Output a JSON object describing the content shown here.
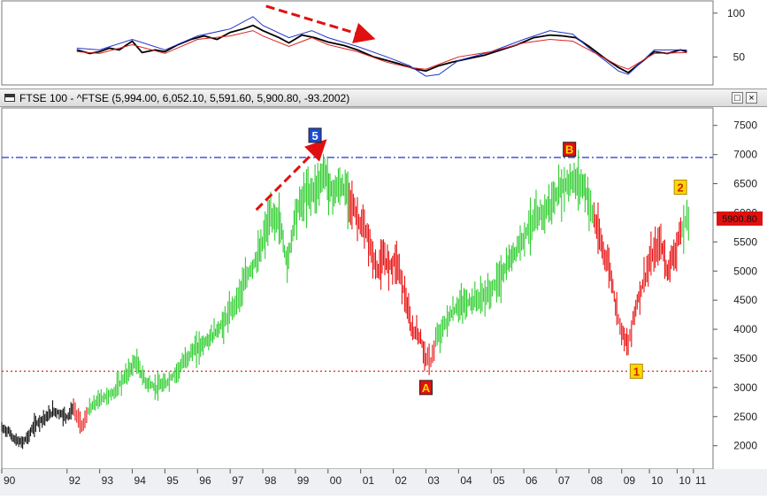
{
  "window": {
    "title": "FTSE 100 - ^FTSE (5,994.00, 6,052.10, 5,591.60, 5,900.80, -93.2002)",
    "maximize_glyph": "□",
    "close_glyph": "×"
  },
  "colors": {
    "up_wave": "#2ecc2e",
    "down_wave": "#e81010",
    "early_bars": "#111111",
    "indicator_main": "#000000",
    "indicator_blue": "#2233cc",
    "indicator_red": "#dd2222",
    "resistance_line": "#3344dd",
    "support_line": "#dd3333",
    "arrow": "#e01010",
    "label_box_yellow": "#ffd700",
    "label_box_red": "#e01010",
    "label_box_blue": "#1a4bd6",
    "price_tag_bg": "#e01010"
  },
  "chart_data": [
    {
      "type": "line",
      "panel": "indicator",
      "ylim": [
        18,
        115
      ],
      "yticks": [
        "100",
        "50"
      ],
      "ytick_values": [
        100,
        50
      ],
      "series": [
        {
          "color": "indicator_main",
          "points": [
            [
              1992.3,
              58
            ],
            [
              1992.7,
              54
            ],
            [
              1993.0,
              56
            ],
            [
              1993.3,
              60
            ],
            [
              1993.6,
              58
            ],
            [
              1994.0,
              68
            ],
            [
              1994.3,
              55
            ],
            [
              1994.7,
              58
            ],
            [
              1995.0,
              56
            ],
            [
              1995.4,
              64
            ],
            [
              1995.8,
              70
            ],
            [
              1996.2,
              74
            ],
            [
              1996.6,
              70
            ],
            [
              1997.0,
              78
            ],
            [
              1997.4,
              82
            ],
            [
              1997.7,
              86
            ],
            [
              1998.0,
              80
            ],
            [
              1998.5,
              72
            ],
            [
              1998.8,
              66
            ],
            [
              1999.2,
              75
            ],
            [
              1999.6,
              72
            ],
            [
              2000.0,
              67
            ],
            [
              2000.5,
              63
            ],
            [
              2000.9,
              58
            ],
            [
              2001.4,
              50
            ],
            [
              2001.8,
              46
            ],
            [
              2002.2,
              42
            ],
            [
              2002.7,
              36
            ],
            [
              2003.0,
              34
            ],
            [
              2003.4,
              40
            ],
            [
              2003.8,
              44
            ],
            [
              2004.3,
              48
            ],
            [
              2004.8,
              52
            ],
            [
              2005.3,
              58
            ],
            [
              2005.8,
              64
            ],
            [
              2006.3,
              72
            ],
            [
              2006.8,
              75
            ],
            [
              2007.2,
              74
            ],
            [
              2007.6,
              72
            ],
            [
              2008.0,
              62
            ],
            [
              2008.5,
              48
            ],
            [
              2008.9,
              38
            ],
            [
              2009.2,
              32
            ],
            [
              2009.6,
              44
            ],
            [
              2010.0,
              56
            ],
            [
              2010.4,
              54
            ],
            [
              2010.8,
              58
            ],
            [
              2011.0,
              56
            ]
          ]
        },
        {
          "color": "indicator_blue",
          "points": [
            [
              1992.3,
              60
            ],
            [
              1993.0,
              58
            ],
            [
              1994.0,
              70
            ],
            [
              1995.0,
              58
            ],
            [
              1996.0,
              74
            ],
            [
              1997.0,
              82
            ],
            [
              1997.7,
              96
            ],
            [
              1998.0,
              86
            ],
            [
              1998.8,
              72
            ],
            [
              1999.5,
              80
            ],
            [
              2000.0,
              72
            ],
            [
              2000.9,
              62
            ],
            [
              2001.8,
              50
            ],
            [
              2002.5,
              40
            ],
            [
              2003.0,
              28
            ],
            [
              2003.4,
              30
            ],
            [
              2004.0,
              46
            ],
            [
              2005.0,
              56
            ],
            [
              2006.0,
              70
            ],
            [
              2006.8,
              80
            ],
            [
              2007.5,
              76
            ],
            [
              2008.0,
              60
            ],
            [
              2008.9,
              34
            ],
            [
              2009.2,
              30
            ],
            [
              2010.0,
              58
            ],
            [
              2011.0,
              58
            ]
          ]
        },
        {
          "color": "indicator_red",
          "points": [
            [
              1992.3,
              56
            ],
            [
              1993.0,
              54
            ],
            [
              1994.0,
              64
            ],
            [
              1995.0,
              54
            ],
            [
              1996.0,
              70
            ],
            [
              1997.0,
              74
            ],
            [
              1997.7,
              80
            ],
            [
              1998.0,
              74
            ],
            [
              1998.8,
              62
            ],
            [
              1999.5,
              72
            ],
            [
              2000.0,
              64
            ],
            [
              2000.9,
              56
            ],
            [
              2001.8,
              44
            ],
            [
              2002.5,
              38
            ],
            [
              2003.0,
              36
            ],
            [
              2004.0,
              50
            ],
            [
              2005.0,
              56
            ],
            [
              2006.0,
              66
            ],
            [
              2006.8,
              70
            ],
            [
              2007.5,
              68
            ],
            [
              2008.0,
              58
            ],
            [
              2008.9,
              40
            ],
            [
              2009.2,
              36
            ],
            [
              2010.0,
              54
            ],
            [
              2011.0,
              55
            ]
          ]
        }
      ]
    },
    {
      "type": "line",
      "panel": "price",
      "ylim": [
        1600,
        7800
      ],
      "yticks": [
        "7500",
        "7000",
        "6500",
        "6000",
        "5500",
        "5000",
        "4500",
        "4000",
        "3500",
        "3000",
        "2500",
        "2000"
      ],
      "ytick_values": [
        7500,
        7000,
        6500,
        6000,
        5500,
        5000,
        4500,
        4000,
        3500,
        3000,
        2500,
        2000
      ],
      "xlim": [
        1990.0,
        2011.8
      ],
      "xticks": [
        "90",
        "92",
        "93",
        "94",
        "95",
        "96",
        "97",
        "98",
        "99",
        "00",
        "01",
        "02",
        "03",
        "04",
        "05",
        "06",
        "07",
        "08",
        "09",
        "10",
        "10",
        "11"
      ],
      "xtick_values": [
        1990.0,
        1992.0,
        1993.0,
        1994.0,
        1995.0,
        1996.0,
        1997.0,
        1998.0,
        1999.0,
        2000.0,
        2001.0,
        2002.0,
        2003.0,
        2004.0,
        2005.0,
        2006.0,
        2007.0,
        2008.0,
        2009.0,
        2009.85,
        2010.7,
        2011.2
      ],
      "resistance_level": 6950,
      "support_level": 3280,
      "last_price_label": "5900.80",
      "last_price": 5900.8,
      "segments": [
        {
          "color": "early_bars",
          "points": [
            [
              1990.0,
              2300
            ],
            [
              1990.2,
              2250
            ],
            [
              1990.4,
              2100
            ],
            [
              1990.6,
              2050
            ],
            [
              1990.8,
              2150
            ],
            [
              1991.0,
              2350
            ],
            [
              1991.2,
              2450
            ],
            [
              1991.4,
              2500
            ],
            [
              1991.6,
              2600
            ],
            [
              1991.8,
              2550
            ],
            [
              1992.0,
              2500
            ],
            [
              1992.2,
              2650
            ]
          ]
        },
        {
          "color": "down_wave",
          "points": [
            [
              1992.2,
              2650
            ],
            [
              1992.35,
              2450
            ],
            [
              1992.5,
              2350
            ],
            [
              1992.65,
              2600
            ]
          ]
        },
        {
          "color": "up_wave",
          "points": [
            [
              1992.65,
              2600
            ],
            [
              1993.0,
              2800
            ],
            [
              1993.4,
              2900
            ],
            [
              1993.8,
              3200
            ],
            [
              1994.1,
              3450
            ],
            [
              1994.4,
              3100
            ],
            [
              1994.7,
              3000
            ],
            [
              1995.0,
              3050
            ],
            [
              1995.4,
              3300
            ],
            [
              1995.8,
              3600
            ],
            [
              1996.3,
              3800
            ],
            [
              1996.8,
              4100
            ],
            [
              1997.2,
              4500
            ],
            [
              1997.6,
              5000
            ],
            [
              1997.9,
              5300
            ],
            [
              1998.2,
              5900
            ],
            [
              1998.5,
              5900
            ],
            [
              1998.75,
              5100
            ],
            [
              1999.0,
              6000
            ],
            [
              1999.3,
              6300
            ],
            [
              1999.6,
              6400
            ],
            [
              1999.9,
              6700
            ],
            [
              2000.1,
              6350
            ],
            [
              2000.4,
              6450
            ],
            [
              2000.65,
              6300
            ]
          ]
        },
        {
          "color": "down_wave",
          "points": [
            [
              2000.65,
              6300
            ],
            [
              2000.9,
              5900
            ],
            [
              2001.2,
              5600
            ],
            [
              2001.5,
              5000
            ],
            [
              2001.7,
              5200
            ],
            [
              2001.9,
              5100
            ],
            [
              2002.1,
              5200
            ],
            [
              2002.35,
              4600
            ],
            [
              2002.55,
              4000
            ],
            [
              2002.8,
              3900
            ],
            [
              2003.0,
              3500
            ],
            [
              2003.15,
              3450
            ],
            [
              2003.3,
              3800
            ]
          ]
        },
        {
          "color": "up_wave",
          "points": [
            [
              2003.3,
              3800
            ],
            [
              2003.7,
              4200
            ],
            [
              2004.0,
              4400
            ],
            [
              2004.5,
              4500
            ],
            [
              2004.9,
              4600
            ],
            [
              2005.3,
              4900
            ],
            [
              2005.8,
              5400
            ],
            [
              2006.2,
              5800
            ],
            [
              2006.6,
              6000
            ],
            [
              2006.9,
              6200
            ],
            [
              2007.2,
              6450
            ],
            [
              2007.5,
              6550
            ],
            [
              2007.8,
              6500
            ],
            [
              2008.0,
              6200
            ],
            [
              2008.15,
              5900
            ]
          ]
        },
        {
          "color": "down_wave",
          "points": [
            [
              2008.15,
              5900
            ],
            [
              2008.4,
              5400
            ],
            [
              2008.65,
              5000
            ],
            [
              2008.85,
              4300
            ],
            [
              2009.0,
              4000
            ],
            [
              2009.2,
              3700
            ],
            [
              2009.35,
              4200
            ],
            [
              2009.6,
              4700
            ],
            [
              2009.9,
              5200
            ],
            [
              2010.2,
              5500
            ],
            [
              2010.4,
              5000
            ],
            [
              2010.6,
              5300
            ],
            [
              2010.85,
              5700
            ]
          ]
        },
        {
          "color": "up_wave",
          "points": [
            [
              2010.85,
              5700
            ],
            [
              2011.0,
              5900
            ],
            [
              2011.1,
              5850
            ]
          ]
        }
      ],
      "wave_labels": [
        {
          "text": "5",
          "x": 1999.6,
          "y": 7330,
          "style": "label_box_blue"
        },
        {
          "text": "B",
          "x": 2007.4,
          "y": 7090,
          "style": "label_box_red"
        },
        {
          "text": "2",
          "x": 2010.8,
          "y": 6440,
          "style": "label_box_yellow"
        },
        {
          "text": "A",
          "x": 2003.0,
          "y": 3000,
          "style": "label_box_red"
        },
        {
          "text": "1",
          "x": 2009.45,
          "y": 3280,
          "style": "label_box_yellow"
        }
      ]
    }
  ]
}
